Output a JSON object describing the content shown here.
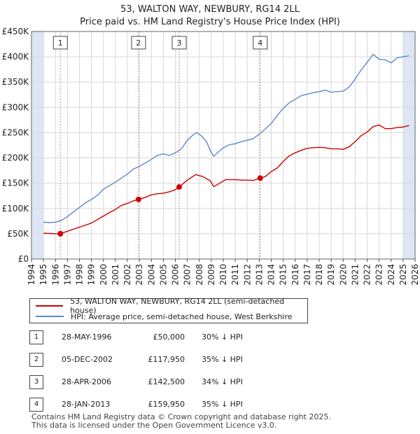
{
  "title": "53, WALTON WAY, NEWBURY, RG14 2LL",
  "subtitle": "Price paid vs. HM Land Registry's House Price Index (HPI)",
  "colors": {
    "property": "#cc0000",
    "hpi": "#5b8ac8",
    "shade": "#dde6f5"
  },
  "chart_data": {
    "type": "line",
    "title": "53, WALTON WAY, NEWBURY, RG14 2LL",
    "subtitle": "Price paid vs. HM Land Registry's House Price Index (HPI)",
    "xlim": [
      1994,
      2026
    ],
    "ylim": [
      0,
      450000
    ],
    "x_ticks": [
      1994,
      1995,
      1996,
      1997,
      1998,
      1999,
      2000,
      2001,
      2002,
      2003,
      2004,
      2005,
      2006,
      2007,
      2008,
      2009,
      2010,
      2011,
      2012,
      2013,
      2014,
      2015,
      2016,
      2017,
      2018,
      2019,
      2020,
      2021,
      2022,
      2023,
      2024,
      2025,
      2026
    ],
    "y_ticks": [
      0,
      50000,
      100000,
      150000,
      200000,
      250000,
      300000,
      350000,
      400000,
      450000
    ],
    "y_tick_labels": [
      "£0",
      "£50K",
      "£100K",
      "£150K",
      "£200K",
      "£250K",
      "£300K",
      "£350K",
      "£400K",
      "£450K"
    ],
    "shaded_periods": [
      [
        1994,
        1995
      ],
      [
        2025,
        2026
      ]
    ],
    "series": [
      {
        "name": "53, WALTON WAY, NEWBURY, RG14 2LL (semi-detached house)",
        "color": "#cc0000",
        "x": [
          1995.0,
          1995.5,
          1996.0,
          1996.41,
          1997.0,
          1998.0,
          1999.0,
          2000.0,
          2000.5,
          2001.0,
          2001.5,
          2002.0,
          2002.5,
          2002.93,
          2003.5,
          2004.0,
          2004.5,
          2005.0,
          2005.5,
          2006.0,
          2006.32,
          2007.0,
          2007.7,
          2008.3,
          2008.9,
          2009.2,
          2009.7,
          2010.2,
          2011.0,
          2011.5,
          2012.0,
          2012.5,
          2013.08,
          2013.5,
          2014.0,
          2014.5,
          2015.0,
          2015.5,
          2016.0,
          2016.5,
          2017.0,
          2017.5,
          2018.0,
          2018.5,
          2019.0,
          2019.5,
          2020.0,
          2020.5,
          2021.0,
          2021.5,
          2022.0,
          2022.5,
          2023.0,
          2023.5,
          2024.0,
          2024.5,
          2025.0,
          2025.5
        ],
        "y": [
          51000,
          50500,
          50000,
          50000,
          55000,
          63000,
          71000,
          85000,
          92000,
          98000,
          106000,
          110000,
          115000,
          117950,
          122000,
          127000,
          129000,
          130000,
          133000,
          137000,
          142500,
          156000,
          167000,
          163000,
          155000,
          143000,
          150000,
          157000,
          157000,
          156000,
          156000,
          155500,
          159950,
          163000,
          173000,
          180000,
          193000,
          204000,
          210000,
          215000,
          219000,
          220000,
          221000,
          220000,
          218000,
          218000,
          217000,
          222000,
          232000,
          244000,
          251000,
          262000,
          265000,
          258000,
          258000,
          260000,
          261000,
          264000
        ]
      },
      {
        "name": "HPI: Average price, semi-detached house, West Berkshire",
        "color": "#5b8ac8",
        "x": [
          1995.0,
          1995.5,
          1996.0,
          1996.5,
          1997.0,
          1997.5,
          1998.0,
          1998.5,
          1999.0,
          1999.5,
          2000.0,
          2000.5,
          2001.0,
          2001.5,
          2002.0,
          2002.5,
          2003.0,
          2003.5,
          2004.0,
          2004.5,
          2005.0,
          2005.5,
          2006.0,
          2006.5,
          2007.0,
          2007.5,
          2007.8,
          2008.2,
          2008.6,
          2008.9,
          2009.2,
          2009.6,
          2010.0,
          2010.5,
          2011.0,
          2011.5,
          2012.0,
          2012.5,
          2013.0,
          2013.5,
          2014.0,
          2014.5,
          2015.0,
          2015.5,
          2016.0,
          2016.5,
          2017.0,
          2017.5,
          2018.0,
          2018.5,
          2019.0,
          2019.5,
          2020.0,
          2020.5,
          2021.0,
          2021.5,
          2022.0,
          2022.5,
          2023.0,
          2023.5,
          2024.0,
          2024.5,
          2025.0,
          2025.5
        ],
        "y": [
          73000,
          72000,
          73000,
          76000,
          84000,
          93000,
          102000,
          111000,
          118000,
          126000,
          138000,
          145000,
          152000,
          160000,
          168000,
          178000,
          183000,
          190000,
          197000,
          205000,
          208000,
          205000,
          210000,
          218000,
          235000,
          246000,
          250000,
          243000,
          232000,
          215000,
          203000,
          212000,
          220000,
          226000,
          228000,
          232000,
          235000,
          238000,
          247000,
          257000,
          268000,
          284000,
          298000,
          309000,
          316000,
          323000,
          326000,
          329000,
          331000,
          334000,
          330000,
          331000,
          332000,
          340000,
          356000,
          374000,
          389000,
          405000,
          395000,
          394000,
          388000,
          398000,
          400000,
          402000
        ]
      }
    ],
    "markers": [
      {
        "label": "1",
        "x": 1996.41,
        "y": 50000
      },
      {
        "label": "2",
        "x": 2002.93,
        "y": 117950
      },
      {
        "label": "3",
        "x": 2006.32,
        "y": 142500
      },
      {
        "label": "4",
        "x": 2013.08,
        "y": 159950
      }
    ]
  },
  "legend": {
    "property_label": "53, WALTON WAY, NEWBURY, RG14 2LL (semi-detached house)",
    "hpi_label": "HPI: Average price, semi-detached house, West Berkshire"
  },
  "sales": [
    {
      "num": "1",
      "date": "28-MAY-1996",
      "price": "£50,000",
      "hpi": "30% ↓ HPI"
    },
    {
      "num": "2",
      "date": "05-DEC-2002",
      "price": "£117,950",
      "hpi": "35% ↓ HPI"
    },
    {
      "num": "3",
      "date": "28-APR-2006",
      "price": "£142,500",
      "hpi": "34% ↓ HPI"
    },
    {
      "num": "4",
      "date": "28-JAN-2013",
      "price": "£159,950",
      "hpi": "35% ↓ HPI"
    }
  ],
  "footer": {
    "line1": "Contains HM Land Registry data © Crown copyright and database right 2025.",
    "line2": "This data is licensed under the Open Government Licence v3.0."
  }
}
